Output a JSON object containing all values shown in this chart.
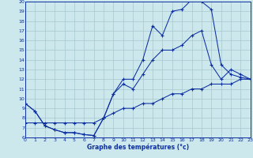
{
  "xlabel": "Graphe des températures (°c)",
  "background_color": "#cce8ed",
  "line_color": "#0d2fa0",
  "grid_color": "#a8c8ce",
  "xlim": [
    0,
    23
  ],
  "ylim": [
    6,
    20
  ],
  "xticks": [
    0,
    1,
    2,
    3,
    4,
    5,
    6,
    7,
    8,
    9,
    10,
    11,
    12,
    13,
    14,
    15,
    16,
    17,
    18,
    19,
    20,
    21,
    22,
    23
  ],
  "yticks": [
    6,
    7,
    8,
    9,
    10,
    11,
    12,
    13,
    14,
    15,
    16,
    17,
    18,
    19,
    20
  ],
  "curve1_x": [
    0,
    1,
    2,
    3,
    4,
    5,
    6,
    7,
    8,
    9,
    10,
    11,
    12,
    13,
    14,
    15,
    16,
    17,
    18,
    19,
    20,
    21,
    22,
    23
  ],
  "curve1_y": [
    9.5,
    8.7,
    7.2,
    6.8,
    6.5,
    6.5,
    6.3,
    6.2,
    8.0,
    10.5,
    12.0,
    12.0,
    14.0,
    17.5,
    16.5,
    19.0,
    19.2,
    20.2,
    20.0,
    19.2,
    13.5,
    12.5,
    12.2,
    12.0
  ],
  "curve2_x": [
    0,
    1,
    2,
    3,
    4,
    5,
    6,
    7,
    8,
    9,
    10,
    11,
    12,
    13,
    14,
    15,
    16,
    17,
    18,
    19,
    20,
    21,
    22,
    23
  ],
  "curve2_y": [
    9.5,
    8.7,
    7.2,
    6.8,
    6.5,
    6.5,
    6.3,
    6.2,
    8.0,
    10.5,
    11.5,
    11.0,
    12.5,
    14.0,
    15.0,
    15.0,
    15.5,
    16.5,
    17.0,
    13.5,
    12.0,
    13.0,
    12.5,
    12.0
  ],
  "curve3_x": [
    0,
    1,
    2,
    3,
    4,
    5,
    6,
    7,
    8,
    9,
    10,
    11,
    12,
    13,
    14,
    15,
    16,
    17,
    18,
    19,
    20,
    21,
    22,
    23
  ],
  "curve3_y": [
    7.5,
    7.5,
    7.5,
    7.5,
    7.5,
    7.5,
    7.5,
    7.5,
    8.0,
    8.5,
    9.0,
    9.0,
    9.5,
    9.5,
    10.0,
    10.5,
    10.5,
    11.0,
    11.0,
    11.5,
    11.5,
    11.5,
    12.0,
    12.0
  ]
}
